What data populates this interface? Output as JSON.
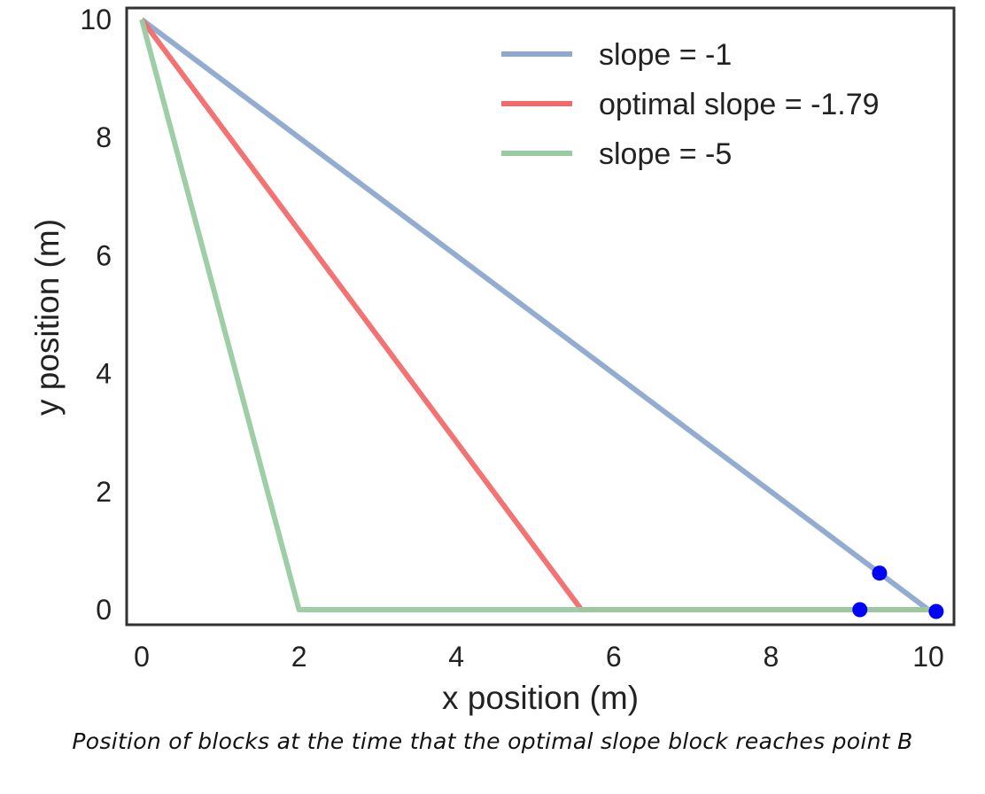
{
  "caption": "Position of blocks at the time that the optimal slope block reaches point B",
  "chart_data": {
    "type": "line",
    "title": "",
    "xlabel": "x position (m)",
    "ylabel": "y position (m)",
    "xlim": [
      -0.2,
      10.3
    ],
    "ylim": [
      -0.2,
      10.1
    ],
    "xticks": [
      0,
      2,
      4,
      6,
      8,
      10
    ],
    "yticks": [
      0,
      2,
      4,
      6,
      8,
      10
    ],
    "grid": false,
    "legend_position": "top-right",
    "series": [
      {
        "name": "slope = -1",
        "color": "#8fa8cf",
        "x": [
          0,
          10,
          10.1
        ],
        "y": [
          10,
          0,
          0
        ]
      },
      {
        "name": "optimal slope = -1.79",
        "color": "#f26a6a",
        "x": [
          0,
          5.59,
          10.1
        ],
        "y": [
          10,
          0,
          0
        ]
      },
      {
        "name": "slope = -5",
        "color": "#99cba0",
        "x": [
          0,
          2,
          10.1
        ],
        "y": [
          10,
          0,
          0
        ]
      }
    ],
    "points": [
      {
        "x": 9.38,
        "y": 0.62,
        "color": "#0000ff"
      },
      {
        "x": 9.13,
        "y": 0.0,
        "color": "#0000ff"
      },
      {
        "x": 10.1,
        "y": -0.03,
        "color": "#0000ff"
      }
    ]
  }
}
